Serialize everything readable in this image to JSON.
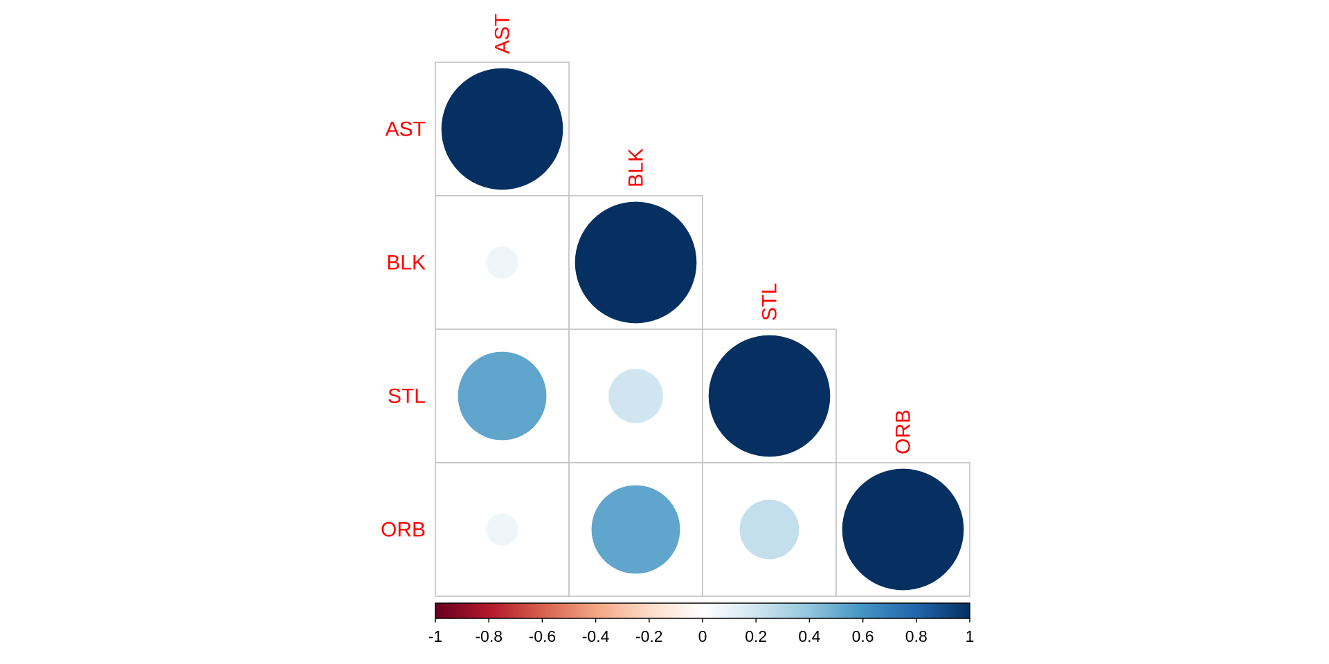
{
  "chart_data": {
    "type": "heatmap",
    "variables": [
      "AST",
      "BLK",
      "STL",
      "ORB"
    ],
    "matrix": [
      [
        1.0,
        0.07,
        0.53,
        0.07
      ],
      [
        0.07,
        1.0,
        0.2,
        0.53
      ],
      [
        0.53,
        0.2,
        1.0,
        0.24
      ],
      [
        0.07,
        0.53,
        0.24,
        1.0
      ]
    ],
    "shape": "lower-triangle",
    "glyph": "circle",
    "title": "",
    "colorbar": {
      "range": [
        -1,
        1
      ],
      "ticks": [
        "-1",
        "-0.8",
        "-0.6",
        "-0.4",
        "-0.2",
        "0",
        "0.2",
        "0.4",
        "0.6",
        "0.8",
        "1"
      ],
      "placement": "bottom"
    },
    "label_color": "#ff0000",
    "grid_color": "#bebebe",
    "palette": [
      "#67001f",
      "#b2182b",
      "#d6604d",
      "#f4a582",
      "#fddbc7",
      "#ffffff",
      "#d1e5f0",
      "#92c5de",
      "#4393c3",
      "#2166ac",
      "#053061"
    ]
  }
}
